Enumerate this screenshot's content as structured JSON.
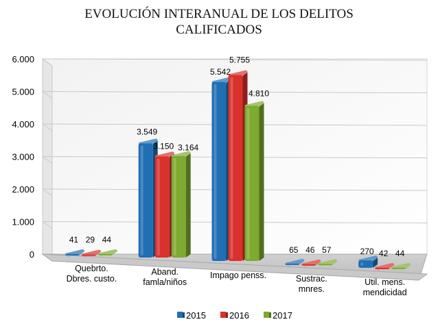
{
  "chart_data": {
    "type": "bar",
    "title_lines": [
      "EVOLUCIÓN INTERANUAL DE LOS DELITOS",
      "CALIFICADOS"
    ],
    "categories": [
      [
        "Quebrto.",
        "Dbres. custo."
      ],
      [
        "Aband.",
        "famla/niños"
      ],
      [
        "Impago penss."
      ],
      [
        "Sustrac.",
        "mnres."
      ],
      [
        "Util. mens.",
        "mendicidad"
      ]
    ],
    "series": [
      {
        "name": "2015",
        "color": "#1F6FB4",
        "values": [
          41,
          3549,
          5542,
          65,
          270
        ],
        "labels": [
          "41",
          "3.549",
          "5.542",
          "65",
          "270"
        ]
      },
      {
        "name": "2016",
        "color": "#D9312B",
        "values": [
          29,
          3150,
          5755,
          46,
          42
        ],
        "labels": [
          "29",
          "3.150",
          "5.755",
          "46",
          "42"
        ]
      },
      {
        "name": "2017",
        "color": "#7DAA2F",
        "values": [
          44,
          3164,
          4810,
          57,
          44
        ],
        "labels": [
          "44",
          "3.164",
          "4.810",
          "57",
          "44"
        ]
      }
    ],
    "ylim": [
      0,
      6000
    ],
    "yticks": [
      {
        "value": 0,
        "label": "0"
      },
      {
        "value": 1000,
        "label": "1.000"
      },
      {
        "value": 2000,
        "label": "2.000"
      },
      {
        "value": 3000,
        "label": "3.000"
      },
      {
        "value": 4000,
        "label": "4.000"
      },
      {
        "value": 5000,
        "label": "5.000"
      },
      {
        "value": 6000,
        "label": "6.000"
      }
    ],
    "grid": true,
    "legend_position": "bottom",
    "xlabel": "",
    "ylabel": ""
  }
}
